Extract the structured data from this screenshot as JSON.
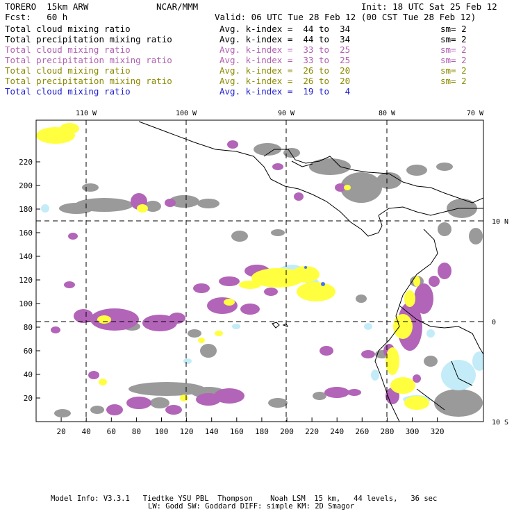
{
  "header": {
    "model": "TORERO  15km ARW",
    "org": "NCAR/MMM",
    "init": "Init: 18 UTC Sat 25 Feb 12",
    "fcst": "Fcst:   60 h",
    "valid": "Valid: 06 UTC Tue 28 Feb 12 (00 CST Tue 28 Feb 12)"
  },
  "legend": [
    {
      "field": "Total cloud mixing ratio",
      "kindex": "Avg. k-index =  44 to  34",
      "sm": "sm= 2",
      "color": "#000000"
    },
    {
      "field": "Total precipitation mixing ratio",
      "kindex": "Avg. k-index =  44 to  34",
      "sm": "sm= 2",
      "color": "#000000"
    },
    {
      "field": "Total cloud mixing ratio",
      "kindex": "Avg. k-index =  33 to  25",
      "sm": "sm= 2",
      "color": "#b060b0"
    },
    {
      "field": "Total precipitation mixing ratio",
      "kindex": "Avg. k-index =  33 to  25",
      "sm": "sm= 2",
      "color": "#b060b0"
    },
    {
      "field": "Total cloud mixing ratio",
      "kindex": "Avg. k-index =  26 to  20",
      "sm": "sm= 2",
      "color": "#8a8a00"
    },
    {
      "field": "Total precipitation mixing ratio",
      "kindex": "Avg. k-index =  26 to  20",
      "sm": "sm= 2",
      "color": "#8a8a00"
    },
    {
      "field": "Total cloud mixing ratio",
      "kindex": "Avg. k-index =  19 to   4",
      "sm": "",
      "color": "#2020d0"
    }
  ],
  "map": {
    "lon_labels": [
      "110 W",
      "100 W",
      "90 W",
      "80 W",
      "70 W"
    ],
    "lat_labels": [
      "10 N",
      "0",
      "10 S"
    ],
    "x_ticks": [
      "20",
      "40",
      "60",
      "80",
      "100",
      "120",
      "140",
      "160",
      "180",
      "200",
      "220",
      "240",
      "260",
      "280",
      "300",
      "320"
    ],
    "y_ticks": [
      "20",
      "40",
      "60",
      "80",
      "100",
      "120",
      "140",
      "160",
      "180",
      "200",
      "220"
    ],
    "colors": {
      "gray": "#9a9a9a",
      "purple": "#b264b8",
      "yellow": "#ffff40",
      "lightblue": "#c4ecf8",
      "blue": "#4a70ff"
    }
  },
  "footer": {
    "line1": "Model Info: V3.3.1   Tiedtke YSU PBL  Thompson    Noah LSM  15 km,   44 levels,   36 sec",
    "line2": "LW: Godd SW: Goddard DIFF: simple KM: 2D Smagor"
  }
}
